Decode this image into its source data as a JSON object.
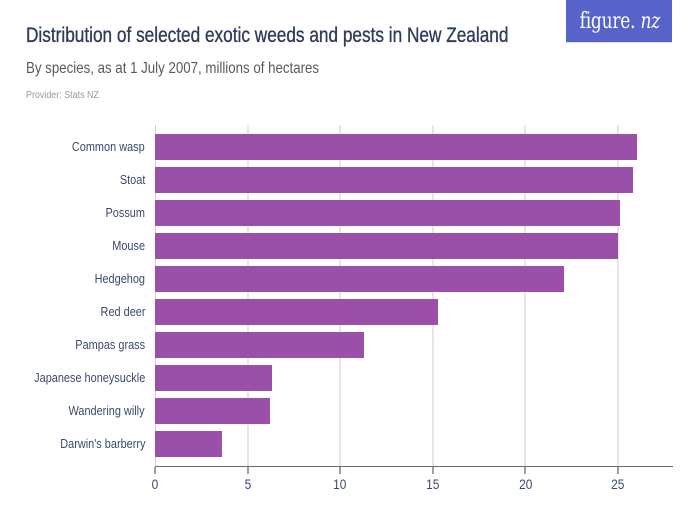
{
  "header": {
    "title": "Distribution of selected exotic weeds and pests in New Zealand",
    "subtitle": "By species, as at 1 July 2007, millions of hectares",
    "provider": "Provider: Stats NZ",
    "logo": {
      "text_main": "figure.",
      "text_accent": "nz",
      "bg_color": "#5763c9"
    }
  },
  "colors": {
    "bar": "#9a4fa8",
    "title": "#2e3b5a",
    "axis_text": "#3a4a6a"
  },
  "chart_data": {
    "type": "bar",
    "orientation": "horizontal",
    "title": "Distribution of selected exotic weeds and pests in New Zealand",
    "subtitle": "By species, as at 1 July 2007, millions of hectares",
    "xlabel": "",
    "ylabel": "",
    "categories": [
      "Common wasp",
      "Stoat",
      "Possum",
      "Mouse",
      "Hedgehog",
      "Red deer",
      "Pampas grass",
      "Japanese honeysuckle",
      "Wandering willy",
      "Darwin's barberry"
    ],
    "values": [
      26.0,
      25.8,
      25.1,
      25.0,
      22.1,
      15.3,
      11.3,
      6.3,
      6.2,
      3.6
    ],
    "xlim": [
      0,
      28
    ],
    "x_ticks": [
      "0",
      "5",
      "10",
      "15",
      "20",
      "25"
    ],
    "x_tick_values": [
      0,
      5,
      10,
      15,
      20,
      25
    ],
    "grid": "vertical",
    "legend": "none",
    "source": "Provider: Stats NZ"
  }
}
